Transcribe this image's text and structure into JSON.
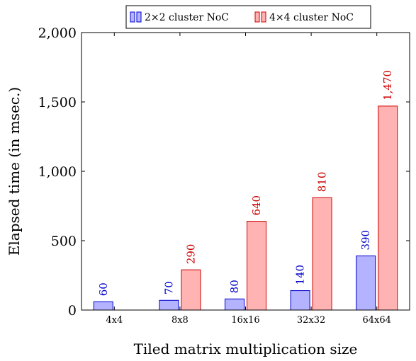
{
  "chart_data": {
    "type": "bar",
    "categories": [
      "4x4",
      "8x8",
      "16x16",
      "32x32",
      "64x64"
    ],
    "series": [
      {
        "name": "2×2 cluster NoC",
        "values": [
          60,
          70,
          80,
          140,
          390
        ],
        "fill": "#b3b3ff",
        "stroke": "#0000cc",
        "label_color": "#0000cc"
      },
      {
        "name": "4×4 cluster NoC",
        "values": [
          null,
          290,
          640,
          810,
          1470
        ],
        "fill": "#ffb3b3",
        "stroke": "#cc0000",
        "label_color": "#cc0000"
      }
    ],
    "data_labels": [
      [
        "60",
        "70",
        "80",
        "140",
        "390"
      ],
      [
        "",
        "290",
        "640",
        "810",
        "1,470"
      ]
    ],
    "yticks": [
      0,
      500,
      1000,
      1500,
      2000
    ],
    "ytick_labels": [
      "0",
      "500",
      "1,000",
      "1,500",
      "2,000"
    ],
    "xlabel": "Tiled matrix multiplication size",
    "ylabel": "Elapsed time (in msec.)",
    "ylim": [
      0,
      2000
    ],
    "grid": false,
    "legend": "top-center"
  }
}
